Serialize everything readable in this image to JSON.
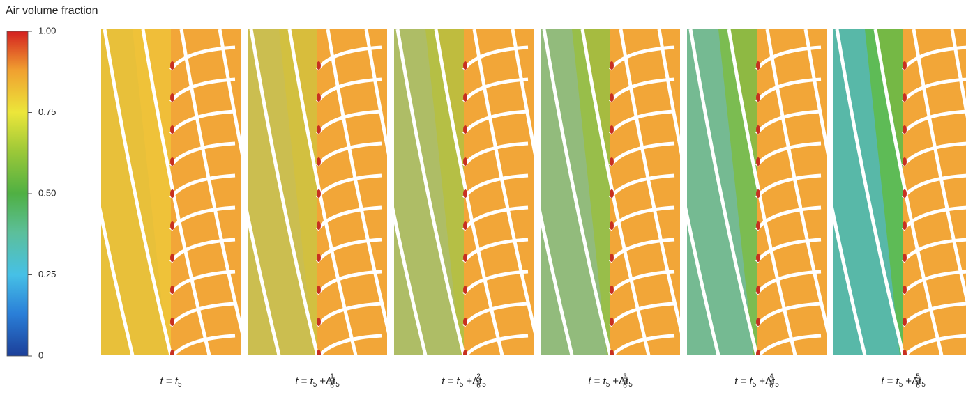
{
  "colorbar": {
    "title": "Air volume fraction",
    "ticks": [
      0,
      {
        "value": 0.25,
        "label": "0.25"
      },
      {
        "value": 0.5,
        "label": "0.50"
      },
      {
        "value": 0.75,
        "label": "0.75"
      },
      {
        "value": 1,
        "label": "1.00"
      }
    ]
  },
  "panels": [
    {
      "caption": {
        "lhs": "t",
        "eq": "=",
        "rhs": "t",
        "sub": "5"
      }
    },
    {
      "caption": {
        "lhs": "t",
        "eq": "=",
        "rhs": "t",
        "sub": "5",
        "plus": "+",
        "num": "1",
        "den": "6",
        "delta": "Δt",
        "delta_sub": "5"
      }
    },
    {
      "caption": {
        "lhs": "t",
        "eq": "=",
        "rhs": "t",
        "sub": "5",
        "plus": "+",
        "num": "2",
        "den": "6",
        "delta": "Δt",
        "delta_sub": "5"
      }
    },
    {
      "caption": {
        "lhs": "t",
        "eq": "=",
        "rhs": "t",
        "sub": "5",
        "plus": "+",
        "num": "3",
        "den": "6",
        "delta": "Δt",
        "delta_sub": "5"
      }
    },
    {
      "caption": {
        "lhs": "t",
        "eq": "=",
        "rhs": "t",
        "sub": "5",
        "plus": "+",
        "num": "4",
        "den": "6",
        "delta": "Δt",
        "delta_sub": "5"
      }
    },
    {
      "caption": {
        "lhs": "t",
        "eq": "=",
        "rhs": "t",
        "sub": "5",
        "plus": "+",
        "num": "5",
        "den": "6",
        "delta": "Δt",
        "delta_sub": "5"
      }
    }
  ]
}
